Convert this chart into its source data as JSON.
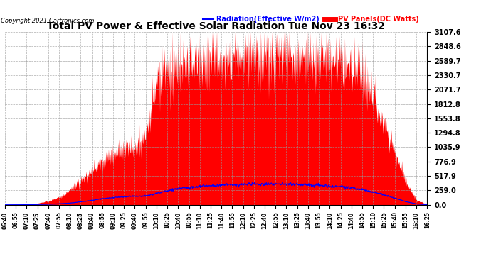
{
  "title": "Total PV Power & Effective Solar Radiation Tue Nov 23 16:32",
  "copyright": "Copyright 2021 Cartronics.com",
  "legend_radiation": "Radiation(Effective W/m2)",
  "legend_pv": "PV Panels(DC Watts)",
  "yticks": [
    0.0,
    259.0,
    517.9,
    776.9,
    1035.9,
    1294.8,
    1553.8,
    1812.8,
    2071.7,
    2330.7,
    2589.7,
    2848.6,
    3107.6
  ],
  "ymax": 3107.6,
  "ymin": 0.0,
  "background_color": "#ffffff",
  "plot_bg_color": "#ffffff",
  "grid_color": "#999999",
  "pv_color": "#ff0000",
  "radiation_color": "#0000ff",
  "title_color": "#000000",
  "copyright_color": "#000000",
  "xtick_labels": [
    "06:40",
    "06:55",
    "07:10",
    "07:25",
    "07:40",
    "07:55",
    "08:10",
    "08:25",
    "08:40",
    "08:55",
    "09:10",
    "09:25",
    "09:40",
    "09:55",
    "10:10",
    "10:25",
    "10:40",
    "10:55",
    "11:10",
    "11:25",
    "11:40",
    "11:55",
    "12:10",
    "12:25",
    "12:40",
    "12:55",
    "13:10",
    "13:25",
    "13:40",
    "13:55",
    "14:10",
    "14:25",
    "14:40",
    "14:55",
    "15:10",
    "15:25",
    "15:40",
    "15:55",
    "16:10",
    "16:25"
  ],
  "pv_envelope": [
    0,
    0,
    10,
    30,
    80,
    150,
    300,
    500,
    700,
    900,
    1050,
    1150,
    1200,
    1350,
    2600,
    2700,
    2800,
    2900,
    2950,
    2980,
    3000,
    3020,
    3030,
    3040,
    3040,
    3040,
    3030,
    3020,
    3000,
    2980,
    2950,
    2900,
    2800,
    2600,
    2200,
    1700,
    1100,
    500,
    100,
    10
  ],
  "radiation_envelope": [
    0,
    0,
    2,
    5,
    10,
    18,
    30,
    55,
    80,
    110,
    130,
    145,
    155,
    160,
    200,
    250,
    290,
    310,
    330,
    345,
    355,
    360,
    365,
    368,
    370,
    370,
    368,
    365,
    360,
    350,
    340,
    325,
    300,
    270,
    230,
    180,
    120,
    60,
    15,
    2
  ]
}
